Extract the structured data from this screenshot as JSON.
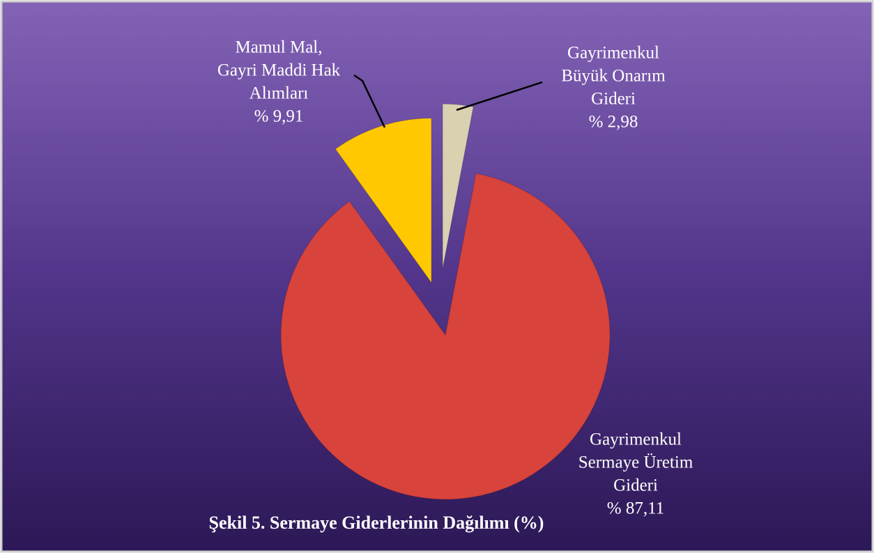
{
  "chart_data": {
    "type": "pie",
    "title": "Şekil 5. Sermaye Giderlerinin Dağılımı (%)",
    "categories": [
      [
        "Gayrimenkul",
        "Büyük Onarım",
        "Gideri"
      ],
      [
        "Gayrimenkul",
        "Sermaye Üretim",
        "Gideri"
      ],
      [
        "Mamul Mal,",
        "Gayri Maddi Hak",
        "Alımları"
      ]
    ],
    "values": [
      2.98,
      87.11,
      9.91
    ],
    "value_labels": [
      "% 2,98",
      "% 87,11",
      "% 9,91"
    ],
    "colors": [
      "#d9d1b0",
      "#d8433b",
      "#ffc800"
    ]
  }
}
